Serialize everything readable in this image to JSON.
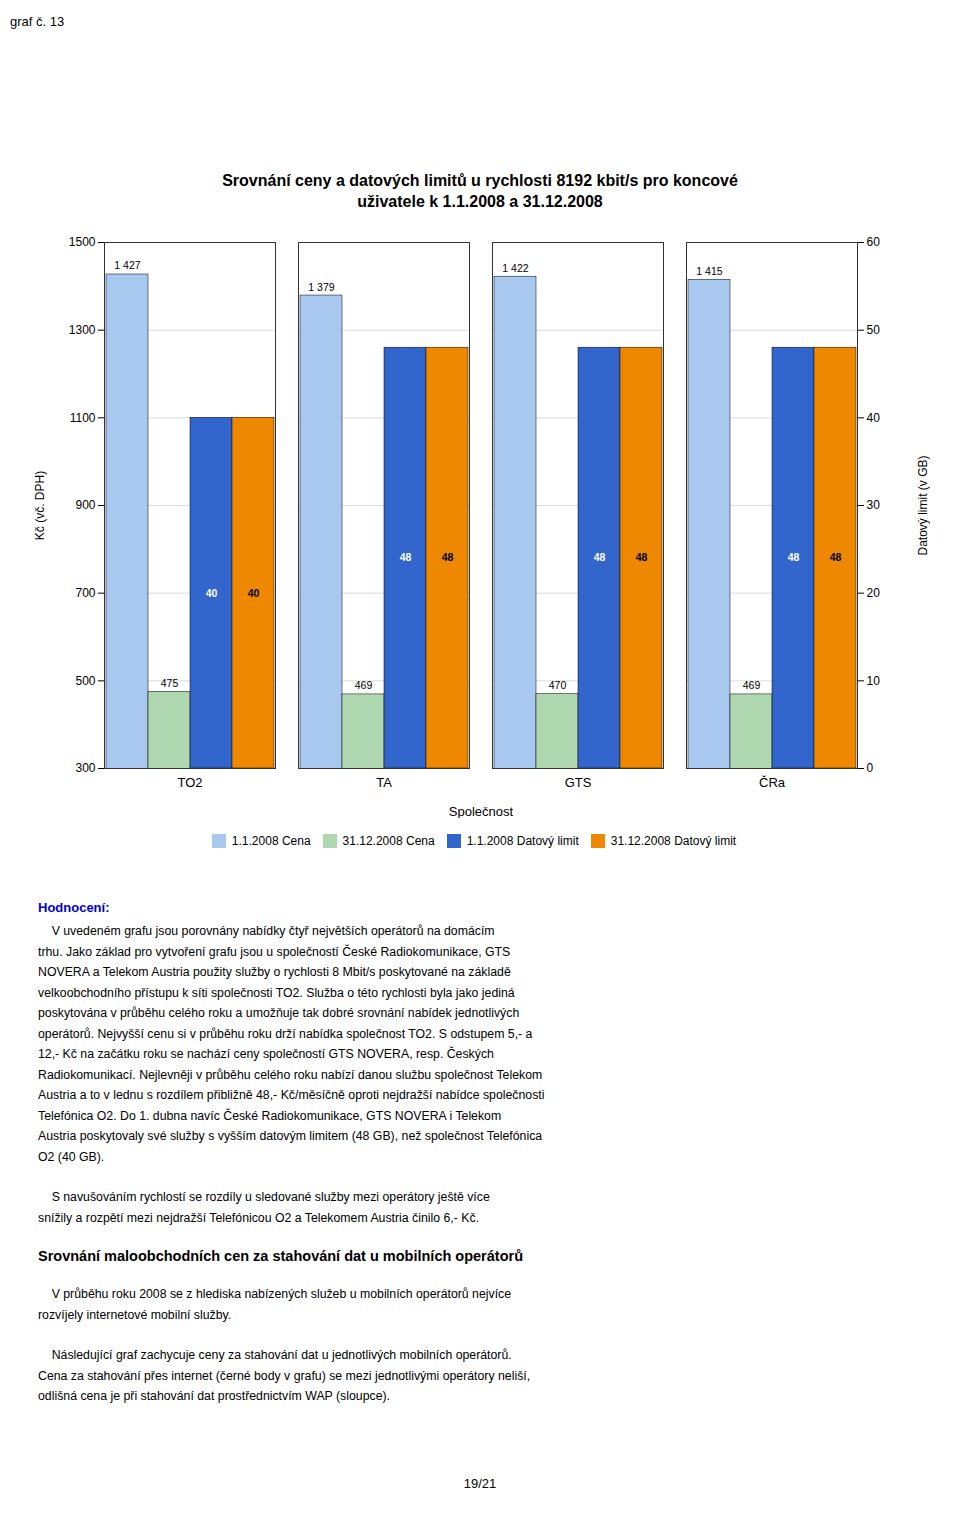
{
  "chart_data": {
    "type": "bar",
    "title": "Srovnání ceny a datových limitů u rychlosti 8192 kbit/s pro koncové\nuživatele k 1.1.2008 a 31.12.2008",
    "xlabel": "Společnost",
    "ylabel": "Kč (vč. DPH)",
    "y2label": "Datový limit (v GB)",
    "categories": [
      "TO2",
      "TA",
      "GTS",
      "ČRa"
    ],
    "series": [
      {
        "name": "1.1.2008 Cena",
        "color": "#a8c8f0",
        "values": [
          1427,
          1379,
          1422,
          1415
        ],
        "value_labels": [
          "1 427",
          "1 379",
          "1 422",
          "1 415"
        ]
      },
      {
        "name": "31.12.2008 Cena",
        "color": "#b0d8b0",
        "values": [
          475,
          469,
          470,
          469
        ]
      },
      {
        "name": "1.1.2008 Datový limit",
        "color": "#3366cc",
        "values": [
          40,
          48,
          48,
          48
        ],
        "axis": "y2"
      },
      {
        "name": "31.12.2008 Datový limit",
        "color": "#ee8800",
        "values": [
          40,
          48,
          48,
          48
        ],
        "axis": "y2"
      }
    ],
    "ylim": [
      300,
      1500
    ],
    "yticks": [
      300,
      500,
      700,
      900,
      1100,
      1300,
      1500
    ],
    "y2lim": [
      0,
      60
    ],
    "y2ticks": [
      0,
      10,
      20,
      30,
      40,
      50,
      60
    ],
    "grid": true,
    "legend": "bottom",
    "data_labels": true,
    "annotations": {
      "graph_label": "graf č. 13",
      "assessment_label": "Hodnocení:",
      "paragraphs_before": [
        [
          "    V uvedeném grafu jsou porovnány nabídky čtyř největších operátorů na domácím",
          "trhu. Jako základ pro vytvoření grafu jsou u společností České Radiokomunikace, GTS",
          "NOVERA a Telekom Austria použity služby o rychlosti 8 Mbit/s poskytované na základě",
          "velkoobchodního přístupu k síti společnosti TO2. Služba o této rychlosti byla jako jediná",
          "poskytována v průběhu celého roku a umožňuje tak dobré srovnání nabídek jednotlivých",
          "operátorů. Nejvyšší cenu si v průběhu roku drží nabídka společnost TO2. S odstupem 5,- a",
          "12,- Kč na začátku roku se nachází ceny společností GTS NOVERA, resp. Českých",
          "Radiokomunikací. Nejlevněji v průběhu celého roku nabízí danou službu společnost Telekom",
          "Austria a to v lednu s rozdílem přibližně 48,- Kč/měsíčně oproti nejdražší nabídce společnosti",
          "Telefónica O2. Do 1. dubna navíc České Radiokomunikace, GTS NOVERA i Telekom",
          "Austria poskytovaly své služby s vyšším datovým limitem (48 GB), než společnost Telefónica",
          "O2 (40 GB)."
        ],
        [
          "    S navušováním rychlostí se rozdíly u sledované služby mezi operátory ještě více",
          "snížily a rozpětí mezi nejdražší Telefónicou O2 a Telekomem Austria činilo 6,- Kč."
        ]
      ],
      "section_heading": "Srovnání maloobchodních cen za stahování dat u mobilních operátorů",
      "paragraphs_after": [
        [
          "    V průběhu roku 2008 se z hlediska nabízených služeb u mobilních operátorů nejvíce",
          "rozvíjely internetové mobilní služby."
        ],
        [
          "    Následující graf zachycuje ceny za stahování dat u jednotlivých mobilních operátorů.",
          "Cena za stahování přes internet (černé body v grafu) se mezi jednotlivými operátory neliší,",
          "odlišná cena je při stahování dat prostřednictvím WAP (sloupce)."
        ]
      ],
      "page_number": "19/21"
    }
  }
}
